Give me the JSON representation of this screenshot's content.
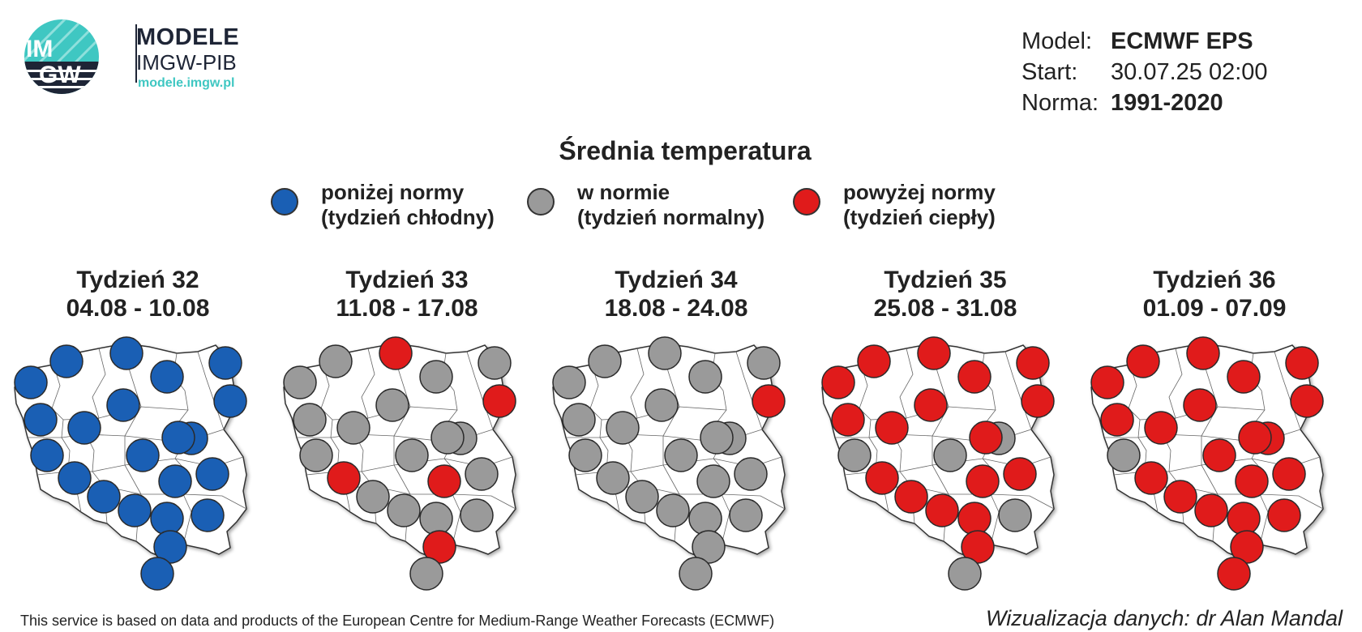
{
  "brand": {
    "logo_text_top": "IM",
    "logo_text_bottom": "GW",
    "title": "MODELE",
    "subtitle": "IMGW-PIB",
    "url": "modele.imgw.pl"
  },
  "meta": [
    {
      "label": "Model:",
      "value": "ECMWF EPS",
      "bold": true
    },
    {
      "label": "Start:",
      "value": "30.07.25 02:00",
      "bold": false
    },
    {
      "label": "Norma:",
      "value": "1991-2020",
      "bold": true
    }
  ],
  "title": "Średnia temperatura",
  "colors": {
    "below": "#1a5fb4",
    "normal": "#9a9a9a",
    "above": "#e01b1b"
  },
  "legend": [
    {
      "key": "below",
      "line1": "poniżej normy",
      "line2": "(tydzień chłodny)"
    },
    {
      "key": "normal",
      "line1": "w normie",
      "line2": "(tydzień normalny)"
    },
    {
      "key": "above",
      "line1": "powyżej normy",
      "line2": "(tydzień ciepły)"
    }
  ],
  "stations": [
    "szczecin",
    "koszalin",
    "leba",
    "gdansk",
    "olsztyn",
    "suwalki",
    "bialystok",
    "torun",
    "poznan",
    "gorzow",
    "zielona-gora",
    "wroclaw",
    "opole",
    "katowice",
    "krakow",
    "lodz",
    "plock",
    "warszawa",
    "kielce",
    "lublin",
    "rzeszow",
    "zakopane"
  ],
  "weeks": [
    {
      "title": "Tydzień 32",
      "dates": "04.08 - 10.08",
      "categories": [
        "below",
        "below",
        "below",
        "below",
        "below",
        "below",
        "below",
        "below",
        "below",
        "below",
        "below",
        "below",
        "below",
        "below",
        "below",
        "below",
        "below",
        "below",
        "below",
        "below",
        "below",
        "below"
      ]
    },
    {
      "title": "Tydzień 33",
      "dates": "11.08 - 17.08",
      "categories": [
        "normal",
        "normal",
        "above",
        "normal",
        "normal",
        "above",
        "normal",
        "normal",
        "normal",
        "normal",
        "normal",
        "above",
        "normal",
        "normal",
        "normal",
        "normal",
        "normal",
        "normal",
        "above",
        "normal",
        "above",
        "normal"
      ]
    },
    {
      "title": "Tydzień 34",
      "dates": "18.08 - 24.08",
      "categories": [
        "normal",
        "normal",
        "normal",
        "normal",
        "normal",
        "above",
        "normal",
        "normal",
        "normal",
        "normal",
        "normal",
        "normal",
        "normal",
        "normal",
        "normal",
        "normal",
        "normal",
        "normal",
        "normal",
        "normal",
        "normal",
        "normal"
      ]
    },
    {
      "title": "Tydzień 35",
      "dates": "25.08 - 31.08",
      "categories": [
        "above",
        "above",
        "above",
        "above",
        "above",
        "above",
        "normal",
        "above",
        "above",
        "above",
        "normal",
        "above",
        "above",
        "above",
        "above",
        "normal",
        "above",
        "above",
        "above",
        "normal",
        "above",
        "normal"
      ]
    },
    {
      "title": "Tydzień 36",
      "dates": "01.09 - 07.09",
      "categories": [
        "above",
        "above",
        "above",
        "above",
        "above",
        "above",
        "above",
        "above",
        "above",
        "above",
        "normal",
        "above",
        "above",
        "above",
        "above",
        "above",
        "above",
        "above",
        "above",
        "above",
        "above",
        "above"
      ]
    }
  ],
  "footer": {
    "left": "This service is based on data and products of the European Centre for Medium-Range Weather Forecasts (ECMWF)",
    "right": "Wizualizacja danych: dr Alan Mandal"
  }
}
